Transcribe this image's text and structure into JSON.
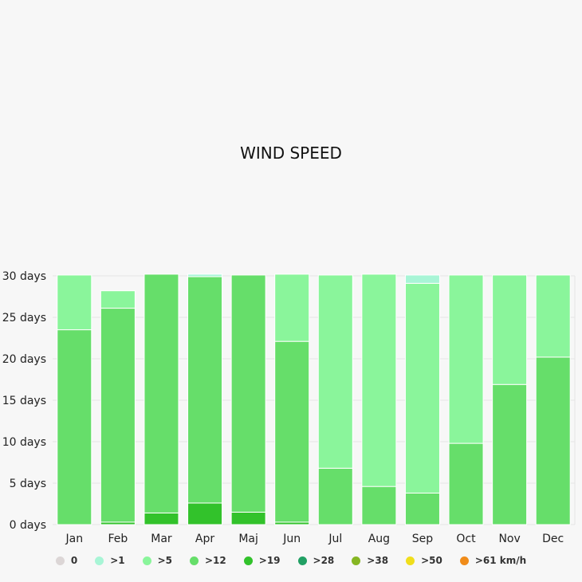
{
  "chart_data": {
    "type": "bar",
    "stacked": true,
    "title": "WIND SPEED",
    "xlabel": "",
    "ylabel": "",
    "ylim": [
      0,
      30
    ],
    "yticks": [
      "0 days",
      "5 days",
      "10 days",
      "15 days",
      "20 days",
      "25 days",
      "30 days"
    ],
    "yticks_values": [
      0,
      5,
      10,
      15,
      20,
      25,
      30
    ],
    "grid": true,
    "legend_position": "bottom",
    "categories": [
      "Jan",
      "Feb",
      "Mar",
      "Apr",
      "Maj",
      "Jun",
      "Jul",
      "Aug",
      "Sep",
      "Oct",
      "Nov",
      "Dec"
    ],
    "series": [
      {
        "name": "0",
        "color": "#dcd6d6",
        "values": [
          0,
          0,
          0,
          0,
          0,
          0,
          0,
          0,
          0,
          0,
          0,
          0
        ]
      },
      {
        "name": ">1",
        "color": "#a8f5d6",
        "values": [
          0,
          0,
          0,
          0.3,
          0,
          0,
          0,
          0,
          1,
          0,
          0,
          0
        ]
      },
      {
        "name": ">5",
        "color": "#8af59b",
        "values": [
          6.6,
          2.1,
          0,
          0,
          0,
          8.1,
          23.3,
          25.6,
          25.3,
          20.3,
          13.2,
          9.9
        ]
      },
      {
        "name": ">12",
        "color": "#66de6a",
        "values": [
          23.5,
          25.8,
          28.8,
          27.3,
          28.6,
          21.8,
          6.8,
          4.6,
          3.8,
          9.8,
          16.9,
          20.2
        ]
      },
      {
        "name": ">19",
        "color": "#32c22b",
        "values": [
          0,
          0.3,
          1.4,
          2.6,
          1.5,
          0.3,
          0,
          0,
          0,
          0,
          0,
          0
        ]
      },
      {
        "name": ">28",
        "color": "#21a064",
        "values": [
          0,
          0,
          0,
          0,
          0,
          0,
          0,
          0,
          0,
          0,
          0,
          0
        ]
      },
      {
        "name": ">38",
        "color": "#86b623",
        "values": [
          0,
          0,
          0,
          0,
          0,
          0,
          0,
          0,
          0,
          0,
          0,
          0
        ]
      },
      {
        "name": ">50",
        "color": "#f0de1c",
        "values": [
          0,
          0,
          0,
          0,
          0,
          0,
          0,
          0,
          0,
          0,
          0,
          0
        ]
      },
      {
        "name": ">61 km/h",
        "color": "#f08c1a",
        "values": [
          0,
          0,
          0,
          0,
          0,
          0,
          0,
          0,
          0,
          0,
          0,
          0
        ]
      }
    ]
  }
}
